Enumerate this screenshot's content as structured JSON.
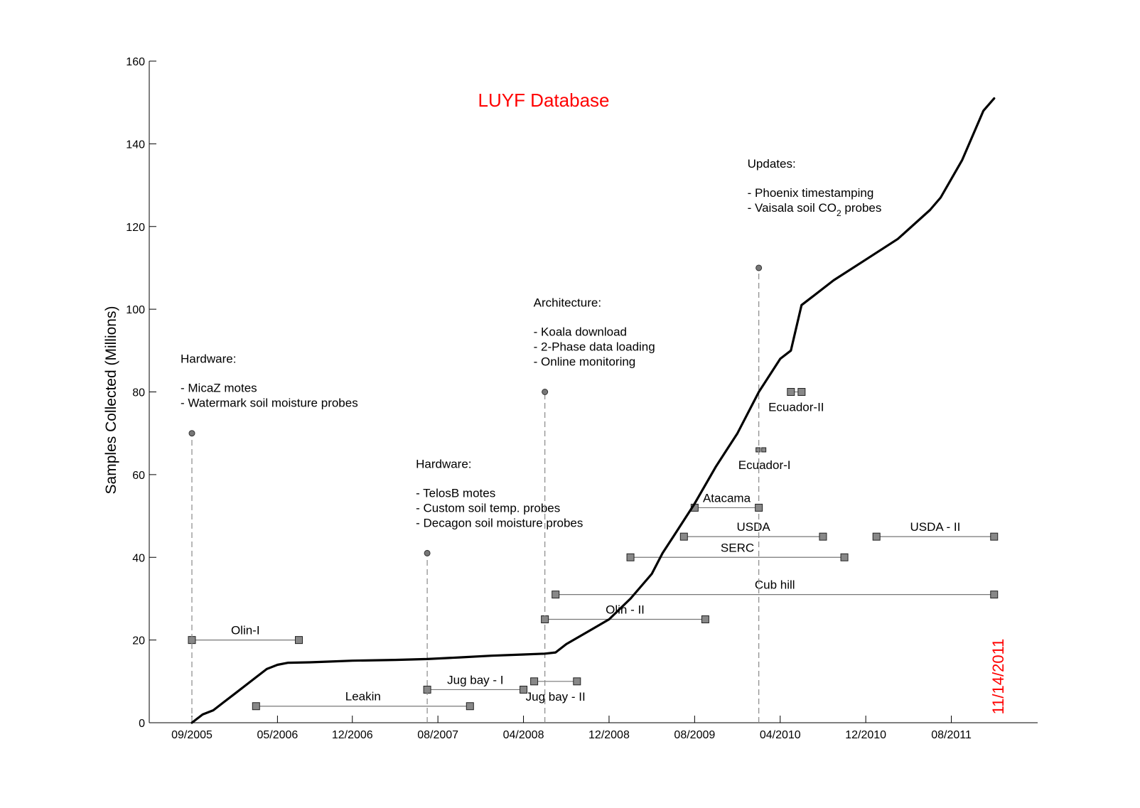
{
  "chart_data": {
    "type": "line",
    "title": "LUYF Database",
    "title_color": "#ff0000",
    "xlabel": "",
    "ylabel": "Samples Collected (Millions)",
    "ylim": [
      0,
      160
    ],
    "yticks": [
      0,
      20,
      40,
      60,
      80,
      100,
      120,
      140,
      160
    ],
    "xticks": [
      "09/2005",
      "05/2006",
      "12/2006",
      "08/2007",
      "04/2008",
      "12/2008",
      "08/2009",
      "04/2010",
      "12/2010",
      "08/2011"
    ],
    "grid": false,
    "date_marker": {
      "label": "11/14/2011",
      "color": "#ff0000"
    },
    "series": [
      {
        "color": "#000000",
        "points": [
          [
            "09/2005",
            0
          ],
          [
            "10/2005",
            2
          ],
          [
            "11/2005",
            3
          ],
          [
            "12/2005",
            5
          ],
          [
            "01/2006",
            7
          ],
          [
            "02/2006",
            9
          ],
          [
            "03/2006",
            11
          ],
          [
            "04/2006",
            13
          ],
          [
            "05/2006",
            14
          ],
          [
            "06/2006",
            14.5
          ],
          [
            "08/2006",
            14.6
          ],
          [
            "10/2006",
            14.8
          ],
          [
            "12/2006",
            15
          ],
          [
            "04/2007",
            15.2
          ],
          [
            "07/2007",
            15.4
          ],
          [
            "10/2007",
            15.8
          ],
          [
            "01/2008",
            16.2
          ],
          [
            "04/2008",
            16.5
          ],
          [
            "06/2008",
            16.7
          ],
          [
            "07/2008",
            17
          ],
          [
            "08/2008",
            19
          ],
          [
            "10/2008",
            22
          ],
          [
            "12/2008",
            25
          ],
          [
            "02/2009",
            30
          ],
          [
            "04/2009",
            36
          ],
          [
            "05/2009",
            41
          ],
          [
            "06/2009",
            45
          ],
          [
            "08/2009",
            53
          ],
          [
            "10/2009",
            62
          ],
          [
            "12/2009",
            70
          ],
          [
            "02/2010",
            80
          ],
          [
            "04/2010",
            88
          ],
          [
            "05/2010",
            90
          ],
          [
            "06/2010",
            101
          ],
          [
            "07/2010",
            103
          ],
          [
            "09/2010",
            107
          ],
          [
            "12/2010",
            112
          ],
          [
            "03/2011",
            117
          ],
          [
            "06/2011",
            124
          ],
          [
            "07/2011",
            127
          ],
          [
            "09/2011",
            136
          ],
          [
            "11/2011",
            148
          ],
          [
            "12/2011",
            151
          ]
        ]
      }
    ],
    "milestones": [
      {
        "date": "09/2005",
        "y": 70,
        "category": "Hardware:",
        "items": [
          "- MicaZ motes",
          "- Watermark soil moisture probes"
        ]
      },
      {
        "date": "07/2007",
        "y": 41,
        "category": "Hardware:",
        "items": [
          "- TelosB motes",
          "- Custom soil temp. probes",
          "- Decagon soil moisture probes"
        ]
      },
      {
        "date": "06/2008",
        "y": 80,
        "category": "Architecture:",
        "items": [
          "- Koala download",
          "- 2-Phase data loading",
          "- Online monitoring"
        ]
      },
      {
        "date": "02/2010",
        "y": 110,
        "category": "Updates:",
        "items": [
          "- Phoenix timestamping",
          "- Vaisala soil CO",
          "2",
          " probes"
        ]
      }
    ],
    "deployments": [
      {
        "name": "Olin-I",
        "start": "09/2005",
        "end": "07/2006",
        "y": 20,
        "label_pos": "above"
      },
      {
        "name": "Leakin",
        "start": "03/2006",
        "end": "11/2007",
        "y": 4,
        "label_pos": "above"
      },
      {
        "name": "Jug bay - I",
        "start": "07/2007",
        "end": "04/2008",
        "y": 8,
        "label_pos": "above"
      },
      {
        "name": "Jug bay - II",
        "start": "05/2008",
        "end": "09/2008",
        "y": 10,
        "label_pos": "below"
      },
      {
        "name": "Olin - II",
        "start": "06/2008",
        "end": "09/2009",
        "y": 25,
        "label_pos": "above"
      },
      {
        "name": "Cub hill",
        "start": "07/2008",
        "end": "12/2011",
        "y": 31,
        "label_pos": "above"
      },
      {
        "name": "SERC",
        "start": "02/2009",
        "end": "10/2010",
        "y": 40,
        "label_pos": "above"
      },
      {
        "name": "USDA",
        "start": "07/2009",
        "end": "08/2010",
        "y": 45,
        "label_pos": "above"
      },
      {
        "name": "Atacama",
        "start": "08/2009",
        "end": "02/2010",
        "y": 52,
        "label_pos": "above"
      },
      {
        "name": "Ecuador-I",
        "start": "02/2010",
        "end": "02/2010",
        "y": 66,
        "label_pos": "below"
      },
      {
        "name": "Ecuador-II",
        "start": "05/2010",
        "end": "06/2010",
        "y": 80,
        "label_pos": "below"
      },
      {
        "name": "USDA - II",
        "start": "01/2011",
        "end": "12/2011",
        "y": 45,
        "label_pos": "above"
      }
    ]
  }
}
